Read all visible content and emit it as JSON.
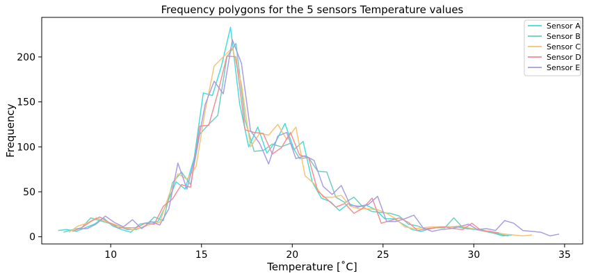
{
  "chart_data": {
    "type": "line",
    "title": "Frequency polygons for the 5 sensors Temperature values",
    "xlabel": "Temperature [˚C]",
    "ylabel": "Frequency",
    "xlim": [
      6.2,
      36.0
    ],
    "ylim": [
      -8,
      244
    ],
    "x_ticks": [
      10,
      15,
      20,
      25,
      30,
      35
    ],
    "y_ticks": [
      0,
      50,
      100,
      150,
      200
    ],
    "legend_position": "top-right",
    "grid": false,
    "series": [
      {
        "name": "Sensor A",
        "color": "#40d9d9",
        "points": [
          [
            7.1,
            7
          ],
          [
            7.6,
            8
          ],
          [
            8.1,
            6
          ],
          [
            8.6,
            10
          ],
          [
            9.1,
            14
          ],
          [
            9.6,
            21
          ],
          [
            10.1,
            12
          ],
          [
            10.6,
            8
          ],
          [
            11.1,
            5
          ],
          [
            11.6,
            14
          ],
          [
            12.1,
            16
          ],
          [
            12.6,
            17
          ],
          [
            13.1,
            37
          ],
          [
            13.6,
            61
          ],
          [
            14.1,
            53
          ],
          [
            14.6,
            88
          ],
          [
            15.1,
            160
          ],
          [
            15.6,
            157
          ],
          [
            16.1,
            190
          ],
          [
            16.6,
            233
          ],
          [
            17.1,
            148
          ],
          [
            17.6,
            100
          ],
          [
            18.1,
            122
          ],
          [
            18.6,
            93
          ],
          [
            19.1,
            106
          ],
          [
            19.6,
            126
          ],
          [
            20.1,
            97
          ],
          [
            20.6,
            106
          ],
          [
            21.1,
            61
          ],
          [
            21.6,
            43
          ],
          [
            22.1,
            39
          ],
          [
            22.6,
            29
          ],
          [
            23.1,
            37
          ],
          [
            23.6,
            33
          ],
          [
            24.1,
            35
          ],
          [
            24.6,
            30
          ],
          [
            25.1,
            20
          ],
          [
            25.6,
            20
          ],
          [
            26.1,
            14
          ],
          [
            26.6,
            8
          ],
          [
            27.1,
            6
          ],
          [
            27.6,
            9
          ],
          [
            28.1,
            11
          ],
          [
            28.6,
            11
          ],
          [
            29.1,
            11
          ],
          [
            29.6,
            9
          ],
          [
            30.1,
            8
          ],
          [
            30.6,
            6
          ],
          [
            31.1,
            4
          ],
          [
            31.6,
            1
          ],
          [
            32.1,
            2
          ]
        ]
      },
      {
        "name": "Sensor B",
        "color": "#66ccbb",
        "points": [
          [
            7.4,
            5
          ],
          [
            7.9,
            8
          ],
          [
            8.4,
            10
          ],
          [
            8.9,
            21
          ],
          [
            9.4,
            18
          ],
          [
            9.9,
            15
          ],
          [
            10.4,
            12
          ],
          [
            10.9,
            8
          ],
          [
            11.4,
            8
          ],
          [
            11.9,
            12
          ],
          [
            12.4,
            22
          ],
          [
            12.9,
            18
          ],
          [
            13.4,
            60
          ],
          [
            13.9,
            72
          ],
          [
            14.4,
            58
          ],
          [
            14.9,
            114
          ],
          [
            15.4,
            125
          ],
          [
            15.9,
            135
          ],
          [
            16.4,
            200
          ],
          [
            16.9,
            215
          ],
          [
            17.4,
            130
          ],
          [
            17.9,
            95
          ],
          [
            18.4,
            96
          ],
          [
            18.9,
            103
          ],
          [
            19.4,
            100
          ],
          [
            19.9,
            104
          ],
          [
            20.4,
            87
          ],
          [
            20.9,
            88
          ],
          [
            21.4,
            73
          ],
          [
            21.9,
            72
          ],
          [
            22.4,
            44
          ],
          [
            22.9,
            38
          ],
          [
            23.4,
            44
          ],
          [
            23.9,
            33
          ],
          [
            24.4,
            28
          ],
          [
            24.9,
            27
          ],
          [
            25.4,
            26
          ],
          [
            25.9,
            23
          ],
          [
            26.4,
            14
          ],
          [
            26.9,
            12
          ],
          [
            27.4,
            8
          ],
          [
            27.9,
            10
          ],
          [
            28.4,
            10
          ],
          [
            28.9,
            21
          ],
          [
            29.4,
            10
          ],
          [
            29.9,
            9
          ],
          [
            30.4,
            8
          ],
          [
            30.9,
            5
          ],
          [
            31.4,
            3
          ],
          [
            31.9,
            1
          ]
        ]
      },
      {
        "name": "Sensor C",
        "color": "#f8c070",
        "points": [
          [
            7.7,
            5
          ],
          [
            8.2,
            12
          ],
          [
            8.7,
            15
          ],
          [
            9.2,
            21
          ],
          [
            9.7,
            17
          ],
          [
            10.2,
            14
          ],
          [
            10.7,
            10
          ],
          [
            11.2,
            8
          ],
          [
            11.7,
            10
          ],
          [
            12.2,
            14
          ],
          [
            12.7,
            16
          ],
          [
            13.2,
            46
          ],
          [
            13.7,
            70
          ],
          [
            14.2,
            64
          ],
          [
            14.7,
            78
          ],
          [
            15.2,
            140
          ],
          [
            15.7,
            190
          ],
          [
            16.2,
            200
          ],
          [
            16.7,
            210
          ],
          [
            17.2,
            170
          ],
          [
            17.7,
            100
          ],
          [
            18.2,
            115
          ],
          [
            18.7,
            113
          ],
          [
            19.2,
            125
          ],
          [
            19.7,
            108
          ],
          [
            20.2,
            122
          ],
          [
            20.7,
            68
          ],
          [
            21.2,
            59
          ],
          [
            21.7,
            44
          ],
          [
            22.2,
            44
          ],
          [
            22.7,
            46
          ],
          [
            23.2,
            34
          ],
          [
            23.7,
            31
          ],
          [
            24.2,
            31
          ],
          [
            24.7,
            30
          ],
          [
            25.2,
            26
          ],
          [
            25.7,
            20
          ],
          [
            26.2,
            11
          ],
          [
            26.7,
            9
          ],
          [
            27.2,
            10
          ],
          [
            27.7,
            11
          ],
          [
            28.2,
            11
          ],
          [
            28.7,
            11
          ],
          [
            29.2,
            12
          ],
          [
            29.7,
            10
          ],
          [
            30.2,
            8
          ],
          [
            30.7,
            6
          ],
          [
            31.2,
            5
          ],
          [
            31.7,
            3
          ],
          [
            32.2,
            2
          ],
          [
            32.7,
            1
          ],
          [
            33.2,
            2
          ]
        ]
      },
      {
        "name": "Sensor D",
        "color": "#f08a90",
        "points": [
          [
            7.9,
            6
          ],
          [
            8.4,
            10
          ],
          [
            8.9,
            17
          ],
          [
            9.4,
            22
          ],
          [
            9.9,
            16
          ],
          [
            10.4,
            10
          ],
          [
            10.9,
            10
          ],
          [
            11.4,
            10
          ],
          [
            11.9,
            15
          ],
          [
            12.4,
            14
          ],
          [
            12.9,
            34
          ],
          [
            13.4,
            42
          ],
          [
            13.9,
            58
          ],
          [
            14.4,
            55
          ],
          [
            14.9,
            123
          ],
          [
            15.4,
            124
          ],
          [
            15.9,
            160
          ],
          [
            16.4,
            201
          ],
          [
            16.9,
            200
          ],
          [
            17.4,
            119
          ],
          [
            17.9,
            116
          ],
          [
            18.4,
            115
          ],
          [
            18.9,
            92
          ],
          [
            19.4,
            99
          ],
          [
            19.9,
            116
          ],
          [
            20.4,
            91
          ],
          [
            20.9,
            88
          ],
          [
            21.4,
            51
          ],
          [
            21.9,
            42
          ],
          [
            22.4,
            33
          ],
          [
            22.9,
            37
          ],
          [
            23.4,
            26
          ],
          [
            23.9,
            32
          ],
          [
            24.4,
            43
          ],
          [
            24.9,
            15
          ],
          [
            25.4,
            18
          ],
          [
            25.9,
            21
          ],
          [
            26.4,
            16
          ],
          [
            26.9,
            7
          ],
          [
            27.4,
            9
          ],
          [
            27.9,
            10
          ],
          [
            28.4,
            11
          ],
          [
            28.9,
            9
          ],
          [
            29.4,
            8
          ],
          [
            29.9,
            15
          ],
          [
            30.4,
            7
          ],
          [
            30.9,
            6
          ],
          [
            31.4,
            4
          ]
        ]
      },
      {
        "name": "Sensor E",
        "color": "#a898e0",
        "points": [
          [
            8.2,
            9
          ],
          [
            8.7,
            9
          ],
          [
            9.2,
            14
          ],
          [
            9.7,
            23
          ],
          [
            10.2,
            16
          ],
          [
            10.7,
            11
          ],
          [
            11.2,
            19
          ],
          [
            11.7,
            9
          ],
          [
            12.2,
            17
          ],
          [
            12.7,
            13
          ],
          [
            13.2,
            31
          ],
          [
            13.7,
            82
          ],
          [
            14.2,
            53
          ],
          [
            14.7,
            93
          ],
          [
            15.2,
            147
          ],
          [
            15.7,
            173
          ],
          [
            16.2,
            159
          ],
          [
            16.7,
            219
          ],
          [
            17.2,
            193
          ],
          [
            17.7,
            118
          ],
          [
            18.2,
            104
          ],
          [
            18.7,
            81
          ],
          [
            19.2,
            112
          ],
          [
            19.7,
            116
          ],
          [
            20.2,
            87
          ],
          [
            20.7,
            90
          ],
          [
            21.2,
            85
          ],
          [
            21.7,
            56
          ],
          [
            22.2,
            47
          ],
          [
            22.7,
            57
          ],
          [
            23.2,
            35
          ],
          [
            23.7,
            34
          ],
          [
            24.2,
            36
          ],
          [
            24.7,
            45
          ],
          [
            25.2,
            17
          ],
          [
            25.7,
            17
          ],
          [
            26.2,
            20
          ],
          [
            26.7,
            24
          ],
          [
            27.2,
            10
          ],
          [
            27.7,
            6
          ],
          [
            28.2,
            8
          ],
          [
            28.7,
            9
          ],
          [
            29.2,
            11
          ],
          [
            29.7,
            14
          ],
          [
            30.2,
            8
          ],
          [
            30.7,
            9
          ],
          [
            31.2,
            7
          ],
          [
            31.7,
            18
          ],
          [
            32.2,
            15
          ],
          [
            32.7,
            7
          ],
          [
            33.2,
            6
          ],
          [
            33.7,
            5
          ],
          [
            34.2,
            1
          ],
          [
            34.7,
            3
          ]
        ]
      }
    ]
  }
}
